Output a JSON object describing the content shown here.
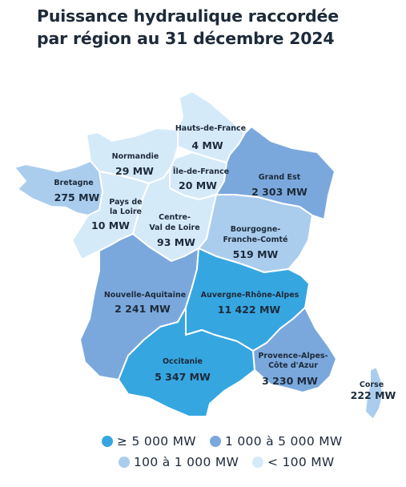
{
  "title": {
    "line1": "Puissance hydraulique raccordée",
    "line2": "par région au 31 décembre 2024"
  },
  "colors": {
    "very_high": "#36a6e0",
    "high": "#7ba8dc",
    "medium": "#aacdee",
    "low": "#d5eaf9",
    "border": "#ffffff",
    "text": "#1d2a3a"
  },
  "regions": {
    "hauts_de_france": {
      "name": "Hauts-de-France",
      "value": "4 MW",
      "class": "low"
    },
    "normandie": {
      "name": "Normandie",
      "value": "29 MW",
      "class": "low"
    },
    "ile_de_france": {
      "name": "Île-de-France",
      "value": "20 MW",
      "class": "low"
    },
    "grand_est": {
      "name": "Grand Est",
      "value": "2 303 MW",
      "class": "high"
    },
    "bretagne": {
      "name": "Bretagne",
      "value": "275 MW",
      "class": "medium"
    },
    "pays_de_la_loire": {
      "name_line1": "Pays de",
      "name_line2": "la Loire",
      "value": "10 MW",
      "class": "low"
    },
    "centre_val_de_loire": {
      "name_line1": "Centre-",
      "name_line2": "Val de Loire",
      "value": "93 MW",
      "class": "low"
    },
    "bourgogne_franche_comte": {
      "name_line1": "Bourgogne-",
      "name_line2": "Franche-Comté",
      "value": "519 MW",
      "class": "medium"
    },
    "nouvelle_aquitaine": {
      "name": "Nouvelle-Aquitaine",
      "value": "2 241 MW",
      "class": "high"
    },
    "auvergne_rhone_alpes": {
      "name": "Auvergne-Rhône-Alpes",
      "value": "11 422 MW",
      "class": "very_high"
    },
    "occitanie": {
      "name": "Occitanie",
      "value": "5 347 MW",
      "class": "very_high"
    },
    "paca": {
      "name_line1": "Provence-Alpes-",
      "name_line2": "Côte d'Azur",
      "value": "3 230 MW",
      "class": "high"
    },
    "corse": {
      "name": "Corse",
      "value": "222 MW",
      "class": "medium"
    }
  },
  "legend": {
    "very_high": "≥ 5 000 MW",
    "high": "1 000 à 5 000 MW",
    "medium": "100 à 1 000 MW",
    "low": "< 100 MW"
  }
}
